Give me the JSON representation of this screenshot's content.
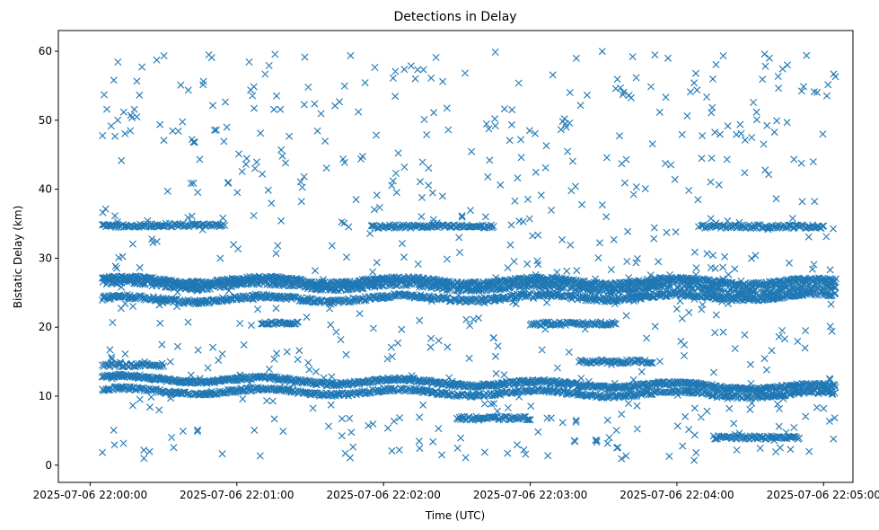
{
  "chart_data": {
    "type": "scatter",
    "title": "Detections in Delay",
    "xlabel": "Time (UTC)",
    "ylabel": "Bistatic Delay (km)",
    "x_start": "2025-07-06 22:00:00",
    "xlim_seconds": [
      -13,
      312
    ],
    "ylim": [
      -2.5,
      63
    ],
    "x_ticks": [
      {
        "value": 0,
        "label": "2025-07-06 22:00:00"
      },
      {
        "value": 60,
        "label": "2025-07-06 22:01:00"
      },
      {
        "value": 120,
        "label": "2025-07-06 22:02:00"
      },
      {
        "value": 180,
        "label": "2025-07-06 22:03:00"
      },
      {
        "value": 240,
        "label": "2025-07-06 22:04:00"
      },
      {
        "value": 300,
        "label": "2025-07-06 22:05:00"
      }
    ],
    "y_ticks": [
      0,
      10,
      20,
      30,
      40,
      50,
      60
    ],
    "marker": "x",
    "color": "#1f77b4",
    "grid": false,
    "legend": "none",
    "series": [
      {
        "x_range": [
          5,
          305
        ],
        "bands": [
          {
            "y_start": 26.8,
            "y_end": 26.5,
            "thickness": 0.6,
            "density": 1.0
          },
          {
            "y_start": 26.2,
            "y_end": 25.4,
            "thickness": 0.6,
            "density": 0.7
          },
          {
            "y_start": 24.0,
            "y_end": 24.5,
            "thickness": 0.6,
            "density": 0.9
          },
          {
            "y_start": 12.6,
            "y_end": 11.2,
            "thickness": 0.5,
            "density": 1.0
          },
          {
            "y_start": 10.8,
            "y_end": 10.2,
            "thickness": 0.5,
            "density": 0.8
          }
        ],
        "segments": [
          {
            "x": [
              5,
              25
            ],
            "y": 34.7
          },
          {
            "x": [
              25,
              55
            ],
            "y": 34.8
          },
          {
            "x": [
              115,
              165
            ],
            "y": 34.6
          },
          {
            "x": [
              250,
              300
            ],
            "y": 34.6
          },
          {
            "x": [
              5,
              30
            ],
            "y": 14.5
          },
          {
            "x": [
              150,
              180
            ],
            "y": 6.8
          },
          {
            "x": [
              200,
              230
            ],
            "y": 15.0
          },
          {
            "x": [
              255,
              290
            ],
            "y": 4.0
          },
          {
            "x": [
              180,
              215
            ],
            "y": 20.5
          },
          {
            "x": [
              70,
              85
            ],
            "y": 20.6
          }
        ],
        "scatter_density": 700
      }
    ]
  }
}
